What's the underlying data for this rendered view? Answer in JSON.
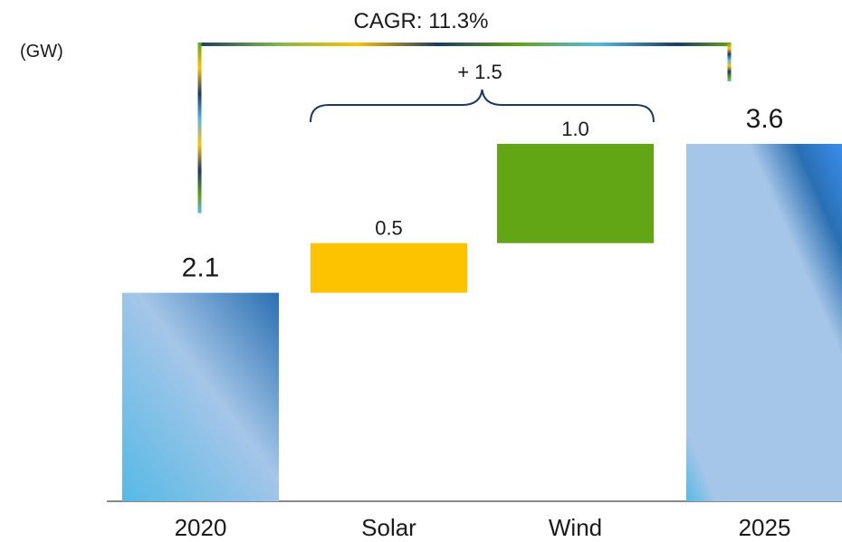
{
  "chart_data": {
    "type": "waterfall",
    "unit_label": "(GW)",
    "categories": [
      "2020",
      "Solar",
      "Wind",
      "2025"
    ],
    "values": [
      2.1,
      0.5,
      1.0,
      3.6
    ],
    "value_labels": [
      "2.1",
      "0.5",
      "1.0",
      "3.6"
    ],
    "bar_kinds": [
      "total",
      "increment",
      "increment",
      "total"
    ],
    "ylim": [
      0,
      3.6
    ],
    "annotations": {
      "cagr": "CAGR: 11.3%",
      "increase": "+ 1.5"
    },
    "colors": {
      "solar": "#fdc300",
      "wind": "#62a515",
      "total_light": "#56b9e6",
      "total_mid": "#a5c6e8",
      "total_dark": "#2a6fb2",
      "axis": "#888888",
      "brace": "#1b3a63"
    }
  }
}
